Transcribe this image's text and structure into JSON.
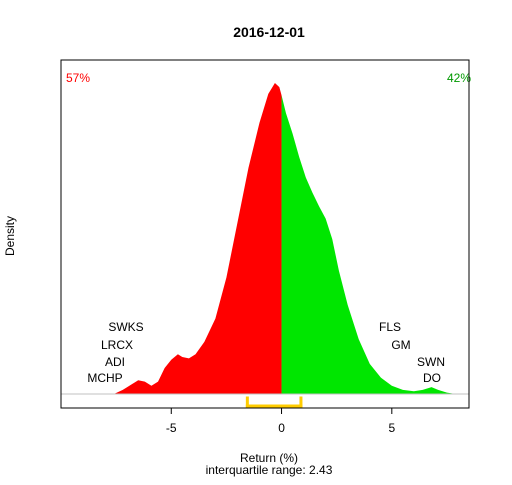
{
  "chart_data": {
    "type": "area",
    "title": "2016-12-01",
    "xlabel": "Return (%)",
    "subtitle": "interquartile range: 2.43",
    "ylabel": "Density",
    "xlim": [
      -10,
      8.5
    ],
    "ylim": [
      0,
      0.235
    ],
    "x_ticks": [
      -5,
      0,
      5
    ],
    "x_tick_labels": [
      "-5",
      "0",
      "5"
    ],
    "split_x": 0,
    "left_share_label": "57%",
    "right_share_label": "42%",
    "interquartile_range": {
      "q1": -1.55,
      "q3": 0.88,
      "value": 2.43
    },
    "density_curve": [
      {
        "x": -7.6,
        "y": 0.0
      },
      {
        "x": -7.2,
        "y": 0.003
      },
      {
        "x": -6.8,
        "y": 0.007
      },
      {
        "x": -6.5,
        "y": 0.01
      },
      {
        "x": -6.2,
        "y": 0.009
      },
      {
        "x": -5.9,
        "y": 0.006
      },
      {
        "x": -5.6,
        "y": 0.009
      },
      {
        "x": -5.3,
        "y": 0.019
      },
      {
        "x": -5.0,
        "y": 0.025
      },
      {
        "x": -4.7,
        "y": 0.029
      },
      {
        "x": -4.5,
        "y": 0.027
      },
      {
        "x": -4.2,
        "y": 0.026
      },
      {
        "x": -3.9,
        "y": 0.029
      },
      {
        "x": -3.5,
        "y": 0.038
      },
      {
        "x": -3.0,
        "y": 0.055
      },
      {
        "x": -2.5,
        "y": 0.085
      },
      {
        "x": -2.0,
        "y": 0.125
      },
      {
        "x": -1.5,
        "y": 0.165
      },
      {
        "x": -1.0,
        "y": 0.198
      },
      {
        "x": -0.6,
        "y": 0.219
      },
      {
        "x": -0.3,
        "y": 0.227
      },
      {
        "x": -0.1,
        "y": 0.224
      },
      {
        "x": 0.0,
        "y": 0.218
      },
      {
        "x": 0.2,
        "y": 0.205
      },
      {
        "x": 0.5,
        "y": 0.19
      },
      {
        "x": 0.8,
        "y": 0.173
      },
      {
        "x": 1.1,
        "y": 0.158
      },
      {
        "x": 1.4,
        "y": 0.147
      },
      {
        "x": 1.7,
        "y": 0.137
      },
      {
        "x": 2.0,
        "y": 0.128
      },
      {
        "x": 2.3,
        "y": 0.113
      },
      {
        "x": 2.6,
        "y": 0.09
      },
      {
        "x": 3.0,
        "y": 0.065
      },
      {
        "x": 3.5,
        "y": 0.04
      },
      {
        "x": 4.0,
        "y": 0.022
      },
      {
        "x": 4.5,
        "y": 0.012
      },
      {
        "x": 5.0,
        "y": 0.006
      },
      {
        "x": 5.5,
        "y": 0.003
      },
      {
        "x": 6.0,
        "y": 0.002
      },
      {
        "x": 6.4,
        "y": 0.003
      },
      {
        "x": 6.8,
        "y": 0.005
      },
      {
        "x": 7.1,
        "y": 0.003
      },
      {
        "x": 7.5,
        "y": 0.001
      },
      {
        "x": 7.9,
        "y": 0.0
      }
    ],
    "left_labels": [
      "SWKS",
      "LRCX",
      "ADI",
      "MCHP"
    ],
    "right_labels": [
      "FLS",
      "GM",
      "SWN",
      "DO"
    ],
    "colors": {
      "negative": "#ff0000",
      "positive": "#00e600",
      "iqr": "#ffcc00",
      "text": "#000000",
      "axis": "#000000",
      "baseline": "#c0c0c0"
    }
  }
}
